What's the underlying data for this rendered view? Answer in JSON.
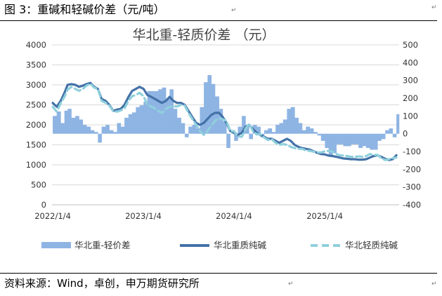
{
  "figure": {
    "title": "图 3：重碱和轻碱价差（元/吨）",
    "source": "资料来源：Wind，卓创，申万期货研究所"
  },
  "chart_data": {
    "type": "area+line",
    "title": "华北重-轻质价差  （元）",
    "left_axis": {
      "ylim": [
        0,
        4000
      ],
      "ticks": [
        "0",
        "500",
        "1000",
        "1500",
        "2000",
        "2500",
        "3000",
        "3500",
        "4000"
      ]
    },
    "right_axis": {
      "ylim": [
        -400,
        500
      ],
      "ticks": [
        "-400",
        "-300",
        "-200",
        "-100",
        "0",
        "100",
        "200",
        "300",
        "400",
        "500"
      ]
    },
    "x_axis": {
      "range": [
        "2022-01-01",
        "2025-10-31"
      ],
      "tick_labels": [
        "2022/1/4",
        "2023/1/4",
        "2024/1/4",
        "2025/1/4"
      ],
      "tick_dates": [
        "2022-01-04",
        "2023-01-04",
        "2024-01-04",
        "2025-01-04"
      ]
    },
    "legend": {
      "placement": "bottom"
    },
    "colors": {
      "spread": "#8eb4e3",
      "heavy": "#4472a8",
      "light": "#8fd0dc"
    },
    "series": [
      {
        "name": "华北重-轻质价差",
        "axis": "right",
        "style": "area",
        "x": [
          "2022-01-04",
          "2022-01-20",
          "2022-02-05",
          "2022-02-20",
          "2022-03-05",
          "2022-03-20",
          "2022-04-05",
          "2022-04-20",
          "2022-05-05",
          "2022-05-20",
          "2022-06-05",
          "2022-06-20",
          "2022-07-05",
          "2022-07-20",
          "2022-08-05",
          "2022-08-20",
          "2022-09-05",
          "2022-09-20",
          "2022-10-05",
          "2022-10-20",
          "2022-11-05",
          "2022-11-20",
          "2022-12-05",
          "2022-12-20",
          "2023-01-05",
          "2023-01-20",
          "2023-02-05",
          "2023-02-20",
          "2023-03-05",
          "2023-03-20",
          "2023-04-05",
          "2023-04-20",
          "2023-05-05",
          "2023-05-20",
          "2023-06-05",
          "2023-06-20",
          "2023-07-05",
          "2023-07-20",
          "2023-08-05",
          "2023-08-20",
          "2023-09-05",
          "2023-09-20",
          "2023-10-05",
          "2023-10-20",
          "2023-11-05",
          "2023-11-20",
          "2023-12-05",
          "2023-12-20",
          "2024-01-05",
          "2024-01-20",
          "2024-02-05",
          "2024-02-20",
          "2024-03-05",
          "2024-03-20",
          "2024-04-05",
          "2024-04-20",
          "2024-05-05",
          "2024-05-20",
          "2024-06-05",
          "2024-06-20",
          "2024-07-05",
          "2024-07-20",
          "2024-08-05",
          "2024-08-20",
          "2024-09-05",
          "2024-09-20",
          "2024-10-05",
          "2024-10-20",
          "2024-11-05",
          "2024-11-20",
          "2024-12-05",
          "2024-12-20",
          "2025-01-05",
          "2025-01-20",
          "2025-02-05",
          "2025-02-20",
          "2025-03-05",
          "2025-03-20",
          "2025-04-05",
          "2025-04-20",
          "2025-05-05",
          "2025-05-20",
          "2025-06-05",
          "2025-06-20",
          "2025-07-05",
          "2025-07-20",
          "2025-08-05",
          "2025-08-20",
          "2025-09-05",
          "2025-09-20",
          "2025-10-05",
          "2025-10-20"
        ],
        "values": [
          100,
          125,
          60,
          130,
          140,
          90,
          100,
          80,
          50,
          40,
          20,
          10,
          -50,
          40,
          50,
          20,
          10,
          60,
          40,
          90,
          110,
          120,
          150,
          160,
          180,
          240,
          240,
          240,
          250,
          260,
          200,
          250,
          140,
          90,
          60,
          -20,
          40,
          50,
          30,
          150,
          290,
          330,
          280,
          210,
          140,
          70,
          -80,
          0,
          -40,
          40,
          100,
          50,
          -30,
          50,
          40,
          -20,
          20,
          30,
          10,
          50,
          60,
          80,
          140,
          150,
          90,
          60,
          20,
          40,
          30,
          10,
          -10,
          -40,
          -80,
          -120,
          -110,
          -60,
          -60,
          -70,
          -70,
          -60,
          -60,
          -80,
          -70,
          -80,
          -90,
          -90,
          -40,
          -30,
          20,
          30,
          -20,
          110
        ]
      },
      {
        "name": "华北重质纯碱",
        "axis": "left",
        "style": "line",
        "x": [
          "2022-01-04",
          "2022-01-20",
          "2022-02-05",
          "2022-02-20",
          "2022-03-05",
          "2022-03-20",
          "2022-04-05",
          "2022-04-20",
          "2022-05-05",
          "2022-05-20",
          "2022-06-05",
          "2022-06-20",
          "2022-07-05",
          "2022-07-20",
          "2022-08-05",
          "2022-08-20",
          "2022-09-05",
          "2022-09-20",
          "2022-10-05",
          "2022-10-20",
          "2022-11-05",
          "2022-11-20",
          "2022-12-05",
          "2022-12-20",
          "2023-01-05",
          "2023-01-20",
          "2023-02-05",
          "2023-02-20",
          "2023-03-05",
          "2023-03-20",
          "2023-04-05",
          "2023-04-20",
          "2023-05-05",
          "2023-05-20",
          "2023-06-05",
          "2023-06-20",
          "2023-07-05",
          "2023-07-20",
          "2023-08-05",
          "2023-08-20",
          "2023-09-05",
          "2023-09-20",
          "2023-10-05",
          "2023-10-20",
          "2023-11-05",
          "2023-11-20",
          "2023-12-05",
          "2023-12-20",
          "2024-01-05",
          "2024-01-20",
          "2024-02-05",
          "2024-02-20",
          "2024-03-05",
          "2024-03-20",
          "2024-04-05",
          "2024-04-20",
          "2024-05-05",
          "2024-05-20",
          "2024-06-05",
          "2024-06-20",
          "2024-07-05",
          "2024-07-20",
          "2024-08-05",
          "2024-08-20",
          "2024-09-05",
          "2024-09-20",
          "2024-10-05",
          "2024-10-20",
          "2024-11-05",
          "2024-11-20",
          "2024-12-05",
          "2024-12-20",
          "2025-01-05",
          "2025-01-20",
          "2025-02-05",
          "2025-02-20",
          "2025-03-05",
          "2025-03-20",
          "2025-04-05",
          "2025-04-20",
          "2025-05-05",
          "2025-05-20",
          "2025-06-05",
          "2025-06-20",
          "2025-07-05",
          "2025-07-20",
          "2025-08-05",
          "2025-08-20",
          "2025-09-05",
          "2025-09-20",
          "2025-10-05",
          "2025-10-20"
        ],
        "values": [
          2550,
          2450,
          2600,
          2800,
          3000,
          3020,
          3000,
          2950,
          2980,
          3020,
          3050,
          2950,
          2900,
          2650,
          2600,
          2500,
          2350,
          2380,
          2400,
          2500,
          2700,
          2850,
          2900,
          2950,
          2900,
          2750,
          2700,
          2650,
          2600,
          2550,
          2600,
          2700,
          2600,
          2550,
          2550,
          2500,
          2350,
          2200,
          2050,
          2000,
          2050,
          2150,
          2250,
          2300,
          2300,
          2200,
          2050,
          1850,
          1800,
          1750,
          1800,
          1950,
          2000,
          1900,
          1800,
          1750,
          1700,
          1650,
          1650,
          1600,
          1550,
          1600,
          1650,
          1600,
          1500,
          1450,
          1420,
          1400,
          1380,
          1340,
          1300,
          1270,
          1260,
          1230,
          1220,
          1200,
          1180,
          1160,
          1150,
          1140,
          1140,
          1130,
          1130,
          1140,
          1180,
          1220,
          1240,
          1200,
          1150,
          1120,
          1140,
          1240
        ]
      },
      {
        "name": "华北轻质纯碱",
        "axis": "left",
        "style": "dashed",
        "x": [
          "2022-01-04",
          "2022-01-20",
          "2022-02-05",
          "2022-02-20",
          "2022-03-05",
          "2022-03-20",
          "2022-04-05",
          "2022-04-20",
          "2022-05-05",
          "2022-05-20",
          "2022-06-05",
          "2022-06-20",
          "2022-07-05",
          "2022-07-20",
          "2022-08-05",
          "2022-08-20",
          "2022-09-05",
          "2022-09-20",
          "2022-10-05",
          "2022-10-20",
          "2022-11-05",
          "2022-11-20",
          "2022-12-05",
          "2022-12-20",
          "2023-01-05",
          "2023-01-20",
          "2023-02-05",
          "2023-02-20",
          "2023-03-05",
          "2023-03-20",
          "2023-04-05",
          "2023-04-20",
          "2023-05-05",
          "2023-05-20",
          "2023-06-05",
          "2023-06-20",
          "2023-07-05",
          "2023-07-20",
          "2023-08-05",
          "2023-08-20",
          "2023-09-05",
          "2023-09-20",
          "2023-10-05",
          "2023-10-20",
          "2023-11-05",
          "2023-11-20",
          "2023-12-05",
          "2023-12-20",
          "2024-01-05",
          "2024-01-20",
          "2024-02-05",
          "2024-02-20",
          "2024-03-05",
          "2024-03-20",
          "2024-04-05",
          "2024-04-20",
          "2024-05-05",
          "2024-05-20",
          "2024-06-05",
          "2024-06-20",
          "2024-07-05",
          "2024-07-20",
          "2024-08-05",
          "2024-08-20",
          "2024-09-05",
          "2024-09-20",
          "2024-10-05",
          "2024-10-20",
          "2024-11-05",
          "2024-11-20",
          "2024-12-05",
          "2024-12-20",
          "2025-01-05",
          "2025-01-20",
          "2025-02-05",
          "2025-02-20",
          "2025-03-05",
          "2025-03-20",
          "2025-04-05",
          "2025-04-20",
          "2025-05-05",
          "2025-05-20",
          "2025-06-05",
          "2025-06-20",
          "2025-07-05",
          "2025-07-20",
          "2025-08-05",
          "2025-08-20",
          "2025-09-05",
          "2025-09-20",
          "2025-10-05",
          "2025-10-20"
        ],
        "values": [
          2450,
          2330,
          2540,
          2700,
          2880,
          2950,
          2900,
          2850,
          2900,
          2980,
          3030,
          2930,
          2900,
          2600,
          2550,
          2480,
          2340,
          2330,
          2360,
          2410,
          2600,
          2720,
          2750,
          2800,
          2720,
          2500,
          2460,
          2410,
          2350,
          2300,
          2400,
          2450,
          2460,
          2460,
          2500,
          2480,
          2300,
          2150,
          2000,
          1850,
          1750,
          1850,
          1980,
          2100,
          2170,
          2140,
          2100,
          1850,
          1840,
          1710,
          1700,
          1900,
          2030,
          1850,
          1760,
          1770,
          1680,
          1620,
          1640,
          1550,
          1500,
          1520,
          1500,
          1450,
          1420,
          1400,
          1400,
          1360,
          1350,
          1330,
          1310,
          1310,
          1340,
          1350,
          1330,
          1270,
          1240,
          1230,
          1220,
          1200,
          1200,
          1210,
          1200,
          1220,
          1270,
          1250,
          1250,
          1170,
          1120,
          1140,
          1170,
          1180
        ]
      }
    ]
  },
  "legend_labels": {
    "spread": "华北重-轻价差",
    "heavy": "华北重质纯碱",
    "light": "华北轻质纯碱"
  }
}
